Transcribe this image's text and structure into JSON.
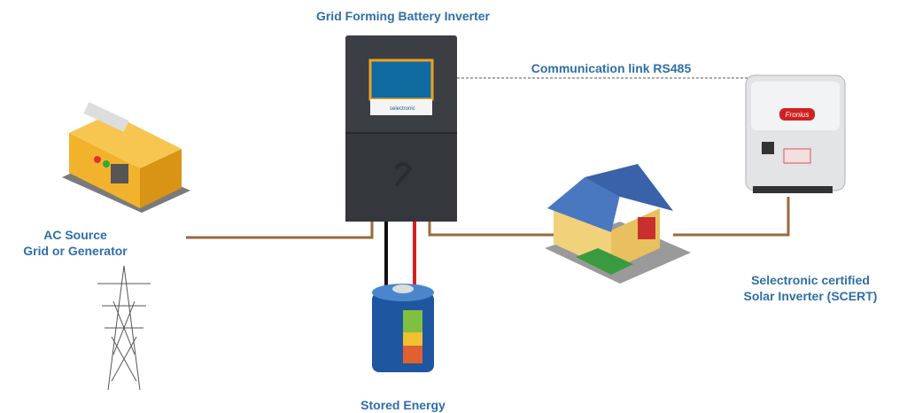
{
  "title": "Grid Forming Battery Inverter",
  "link": {
    "label": "Communication link RS485"
  },
  "nodes": [
    {
      "lines": [
        "AC Source",
        "Grid or Generator"
      ]
    },
    {
      "lines": [
        "Selectronic certified",
        "Solar Inverter (SCERT)"
      ]
    },
    {
      "lines": [
        "Stored Energy"
      ]
    }
  ],
  "brands": {
    "inverter": "selectronic",
    "solar": "Fronius"
  }
}
